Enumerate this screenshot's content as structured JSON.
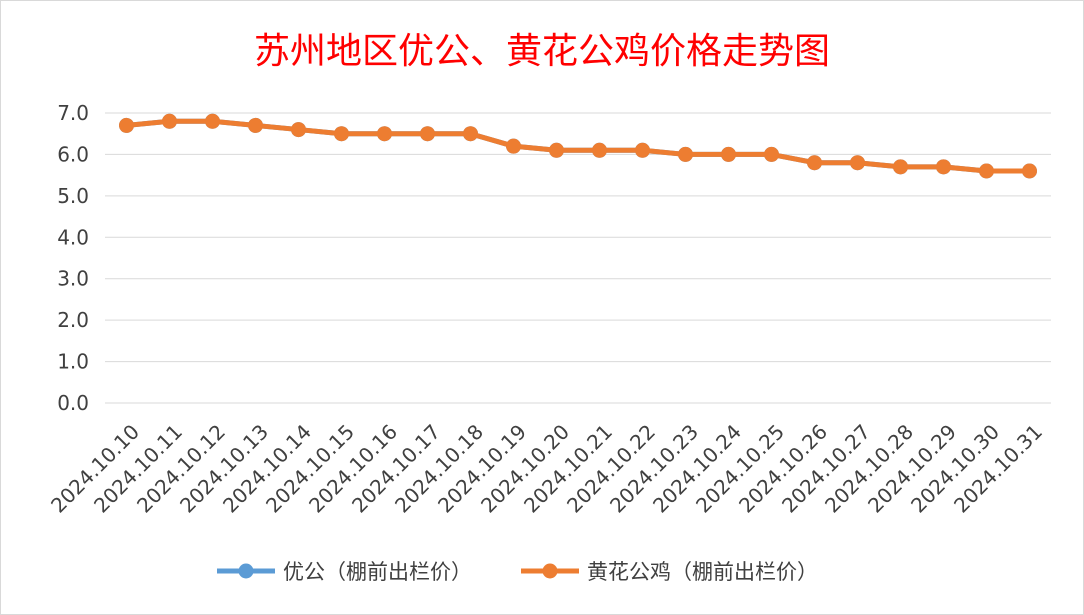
{
  "chart_data": {
    "type": "line",
    "title": "苏州地区优公、黄花公鸡价格走势图",
    "xlabel": "",
    "ylabel": "",
    "ylim": [
      0,
      7
    ],
    "yticks": [
      "0.0",
      "1.0",
      "2.0",
      "3.0",
      "4.0",
      "5.0",
      "6.0",
      "7.0"
    ],
    "grid": true,
    "legend": "bottom",
    "categories": [
      "2024.10.10",
      "2024.10.11",
      "2024.10.12",
      "2024.10.13",
      "2024.10.14",
      "2024.10.15",
      "2024.10.16",
      "2024.10.17",
      "2024.10.18",
      "2024.10.19",
      "2024.10.20",
      "2024.10.21",
      "2024.10.22",
      "2024.10.23",
      "2024.10.24",
      "2024.10.25",
      "2024.10.26",
      "2024.10.27",
      "2024.10.28",
      "2024.10.29",
      "2024.10.30",
      "2024.10.31"
    ],
    "series": [
      {
        "name": "优公（棚前出栏价）",
        "color": "#5b9bd5",
        "values": [
          6.7,
          6.8,
          6.8,
          6.7,
          6.6,
          6.5,
          6.5,
          6.5,
          6.5,
          6.2,
          6.1,
          6.1,
          6.1,
          6.0,
          6.0,
          6.0,
          5.8,
          5.8,
          5.7,
          5.7,
          5.6,
          5.6
        ]
      },
      {
        "name": "黄花公鸡（棚前出栏价）",
        "color": "#ed7d31",
        "values": [
          6.7,
          6.8,
          6.8,
          6.7,
          6.6,
          6.5,
          6.5,
          6.5,
          6.5,
          6.2,
          6.1,
          6.1,
          6.1,
          6.0,
          6.0,
          6.0,
          5.8,
          5.8,
          5.7,
          5.7,
          5.6,
          5.6
        ]
      }
    ],
    "colors": {
      "grid": "#d9d9d9",
      "title": "#ff0000",
      "text": "#404040"
    }
  }
}
